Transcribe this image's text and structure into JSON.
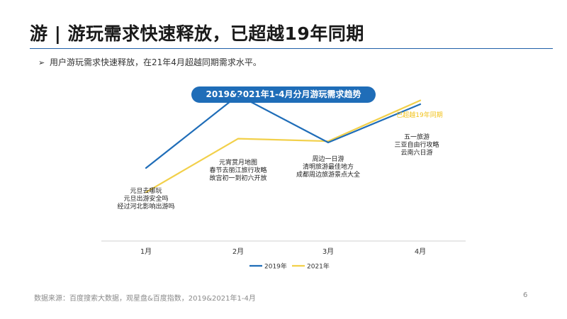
{
  "page": {
    "title": "游 | 游玩需求快速释放，已超越19年同期",
    "bullet": "用户游玩需求快速释放，在21年4月超越同期需求水平。",
    "source": "数据来源：百度搜索大数据，观星盘&百度指数，2019&2021年1-4月",
    "page_number": "6"
  },
  "chart_data": {
    "type": "line",
    "title": "2019&2021年1-4月分月游玩需求趋势",
    "categories": [
      "1月",
      "2月",
      "3月",
      "4月"
    ],
    "series": [
      {
        "name": "2019年",
        "color": "#1f6db8",
        "values": [
          0.35,
          0.92,
          0.55,
          0.85
        ]
      },
      {
        "name": "2021年",
        "color": "#f2d04a",
        "values": [
          0.16,
          0.58,
          0.56,
          0.88
        ]
      }
    ],
    "ylim": [
      0,
      1
    ],
    "grid": false,
    "legend": "bottom-center",
    "annotations": [
      {
        "category": "1月",
        "lines": [
          "元旦去哪玩",
          "元旦出游安全吗",
          "经过河北影响出游吗"
        ]
      },
      {
        "category": "2月",
        "lines": [
          "元宵赏月地图",
          "春节去丽江旅行攻略",
          "故宫初一到初六开放"
        ]
      },
      {
        "category": "3月",
        "lines": [
          "周边一日游",
          "清明旅游最佳地方",
          "成都周边旅游景点大全"
        ]
      },
      {
        "category": "4月",
        "lines": [
          "五一旅游",
          "三亚自由行攻略",
          "云南六日游"
        ]
      }
    ],
    "highlight": {
      "category": "4月",
      "label": "已超越19年同期",
      "color": "#f2c21a"
    }
  }
}
